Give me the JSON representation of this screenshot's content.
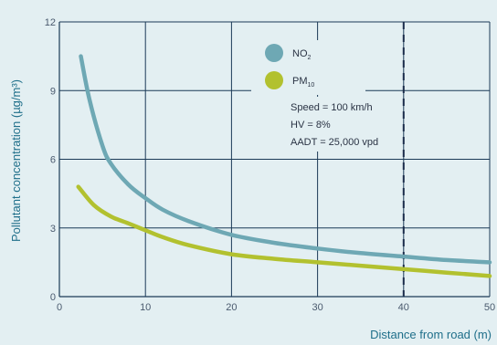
{
  "chart_data": {
    "type": "line",
    "xlabel": "Distance from road (m)",
    "ylabel": "Pollutant concentration (µg/m³)",
    "xlim": [
      0,
      50
    ],
    "ylim": [
      0,
      12
    ],
    "xticks": [
      0,
      10,
      20,
      30,
      40,
      50
    ],
    "yticks": [
      0,
      3,
      6,
      9,
      12
    ],
    "grid": true,
    "legend_position": "top-center",
    "reference_line": {
      "x": 40,
      "style": "dashed"
    },
    "annotations": [
      "Speed = 100 km/h",
      "HV = 8%",
      "AADT = 25,000 vpd"
    ],
    "series": [
      {
        "name": "NO",
        "name_subscript": "2",
        "color": "#6ea8b4",
        "x": [
          2.5,
          3.5,
          5,
          6,
          8,
          10,
          12,
          15,
          20,
          25,
          30,
          35,
          40,
          45,
          50
        ],
        "y": [
          10.5,
          8.6,
          6.6,
          5.8,
          4.9,
          4.3,
          3.8,
          3.3,
          2.7,
          2.35,
          2.1,
          1.9,
          1.75,
          1.6,
          1.5
        ]
      },
      {
        "name": "PM",
        "name_subscript": "10",
        "color": "#b2c12f",
        "x": [
          2.2,
          4,
          6,
          8,
          10,
          12,
          15,
          20,
          25,
          30,
          35,
          40,
          45,
          50
        ],
        "y": [
          4.8,
          4.0,
          3.5,
          3.2,
          2.9,
          2.6,
          2.25,
          1.85,
          1.65,
          1.5,
          1.35,
          1.2,
          1.05,
          0.9
        ]
      }
    ]
  }
}
